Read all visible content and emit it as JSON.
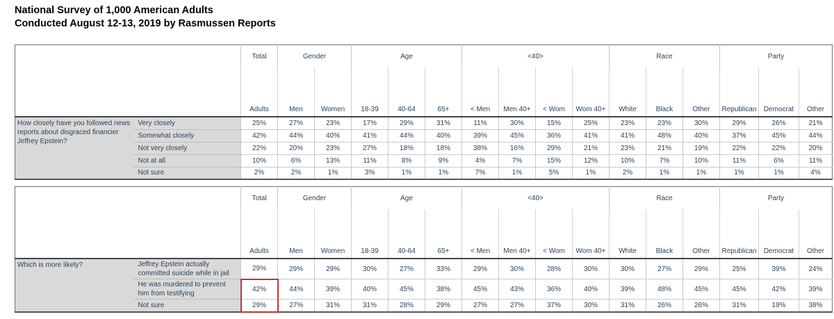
{
  "title": {
    "line1": "National Survey of 1,000 American Adults",
    "line2": "Conducted August 12-13, 2019 by Rasmussen Reports"
  },
  "columns": {
    "groups": [
      {
        "label": "Total",
        "span": 1
      },
      {
        "label": "Gender",
        "span": 2
      },
      {
        "label": "Age",
        "span": 3
      },
      {
        "label": "<40>",
        "span": 4
      },
      {
        "label": "Race",
        "span": 3
      },
      {
        "label": "Party",
        "span": 3
      }
    ],
    "headers": [
      "Adults",
      "Men",
      "Women",
      "18-39",
      "40-64",
      "65+",
      "< Men",
      "Men 40+",
      "< Wom",
      "Wom 40+",
      "White",
      "Black",
      "Other",
      "Republican",
      "Democrat",
      "Other"
    ]
  },
  "tables": [
    {
      "question": "How closely have you followed news reports about disgraced financier Jeffrey Epstein?",
      "rows": [
        {
          "answer": "Very closely",
          "values": [
            "25%",
            "27%",
            "23%",
            "17%",
            "29%",
            "31%",
            "11%",
            "30%",
            "15%",
            "25%",
            "23%",
            "23%",
            "30%",
            "29%",
            "26%",
            "21%"
          ]
        },
        {
          "answer": "Somewhat closely",
          "values": [
            "42%",
            "44%",
            "40%",
            "41%",
            "44%",
            "40%",
            "39%",
            "45%",
            "36%",
            "41%",
            "41%",
            "48%",
            "40%",
            "37%",
            "45%",
            "44%"
          ]
        },
        {
          "answer": "Not very closely",
          "values": [
            "22%",
            "20%",
            "23%",
            "27%",
            "18%",
            "18%",
            "38%",
            "16%",
            "29%",
            "21%",
            "23%",
            "21%",
            "19%",
            "22%",
            "22%",
            "20%"
          ]
        },
        {
          "answer": "Not at all",
          "values": [
            "10%",
            "6%",
            "13%",
            "11%",
            "8%",
            "9%",
            "4%",
            "7%",
            "15%",
            "12%",
            "10%",
            "7%",
            "10%",
            "11%",
            "6%",
            "11%"
          ]
        },
        {
          "answer": "Not sure",
          "values": [
            "2%",
            "2%",
            "1%",
            "3%",
            "1%",
            "1%",
            "7%",
            "1%",
            "5%",
            "1%",
            "2%",
            "1%",
            "1%",
            "1%",
            "1%",
            "4%"
          ]
        }
      ]
    },
    {
      "question": "Which is more likely?",
      "rows": [
        {
          "answer": "Jeffrey Epstein actually committed suicide while in jail",
          "values": [
            "29%",
            "29%",
            "29%",
            "30%",
            "27%",
            "33%",
            "29%",
            "30%",
            "28%",
            "30%",
            "30%",
            "27%",
            "29%",
            "25%",
            "39%",
            "24%"
          ]
        },
        {
          "answer": "He was murdered to prevent him from testifying",
          "values": [
            "42%",
            "44%",
            "39%",
            "40%",
            "45%",
            "38%",
            "45%",
            "43%",
            "36%",
            "40%",
            "39%",
            "48%",
            "45%",
            "45%",
            "42%",
            "39%"
          ]
        },
        {
          "answer": "Not sure",
          "values": [
            "29%",
            "27%",
            "31%",
            "31%",
            "28%",
            "29%",
            "27%",
            "27%",
            "37%",
            "30%",
            "31%",
            "26%",
            "26%",
            "31%",
            "19%",
            "38%"
          ]
        }
      ]
    }
  ],
  "highlight": {
    "table_index": 1,
    "column_header": "Adults",
    "row_indices": [
      1,
      2
    ],
    "color": "#b63a31"
  }
}
